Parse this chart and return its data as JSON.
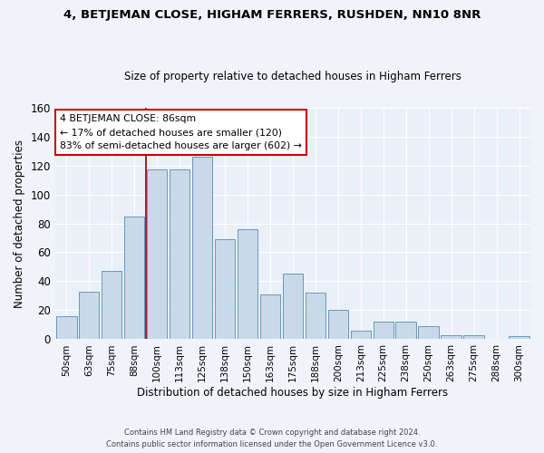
{
  "title": "4, BETJEMAN CLOSE, HIGHAM FERRERS, RUSHDEN, NN10 8NR",
  "subtitle": "Size of property relative to detached houses in Higham Ferrers",
  "xlabel": "Distribution of detached houses by size in Higham Ferrers",
  "ylabel": "Number of detached properties",
  "footer1": "Contains HM Land Registry data © Crown copyright and database right 2024.",
  "footer2": "Contains public sector information licensed under the Open Government Licence v3.0.",
  "bar_labels": [
    "50sqm",
    "63sqm",
    "75sqm",
    "88sqm",
    "100sqm",
    "113sqm",
    "125sqm",
    "138sqm",
    "150sqm",
    "163sqm",
    "175sqm",
    "188sqm",
    "200sqm",
    "213sqm",
    "225sqm",
    "238sqm",
    "250sqm",
    "263sqm",
    "275sqm",
    "288sqm",
    "300sqm"
  ],
  "bar_values": [
    16,
    33,
    47,
    85,
    117,
    117,
    126,
    69,
    76,
    31,
    45,
    32,
    20,
    6,
    12,
    12,
    9,
    3,
    3,
    0,
    2
  ],
  "bar_color": "#c9d9e8",
  "bar_edge_color": "#6699bb",
  "bg_color": "#eaf0f8",
  "grid_color": "#ffffff",
  "vline_x": 3.5,
  "vline_color": "#8b0000",
  "annotation_line1": "4 BETJEMAN CLOSE: 86sqm",
  "annotation_line2": "← 17% of detached houses are smaller (120)",
  "annotation_line3": "83% of semi-detached houses are larger (602) →",
  "annotation_box_color": "#ffffff",
  "annotation_edge_color": "#cc0000",
  "ylim": [
    0,
    160
  ],
  "yticks": [
    0,
    20,
    40,
    60,
    80,
    100,
    120,
    140,
    160
  ]
}
